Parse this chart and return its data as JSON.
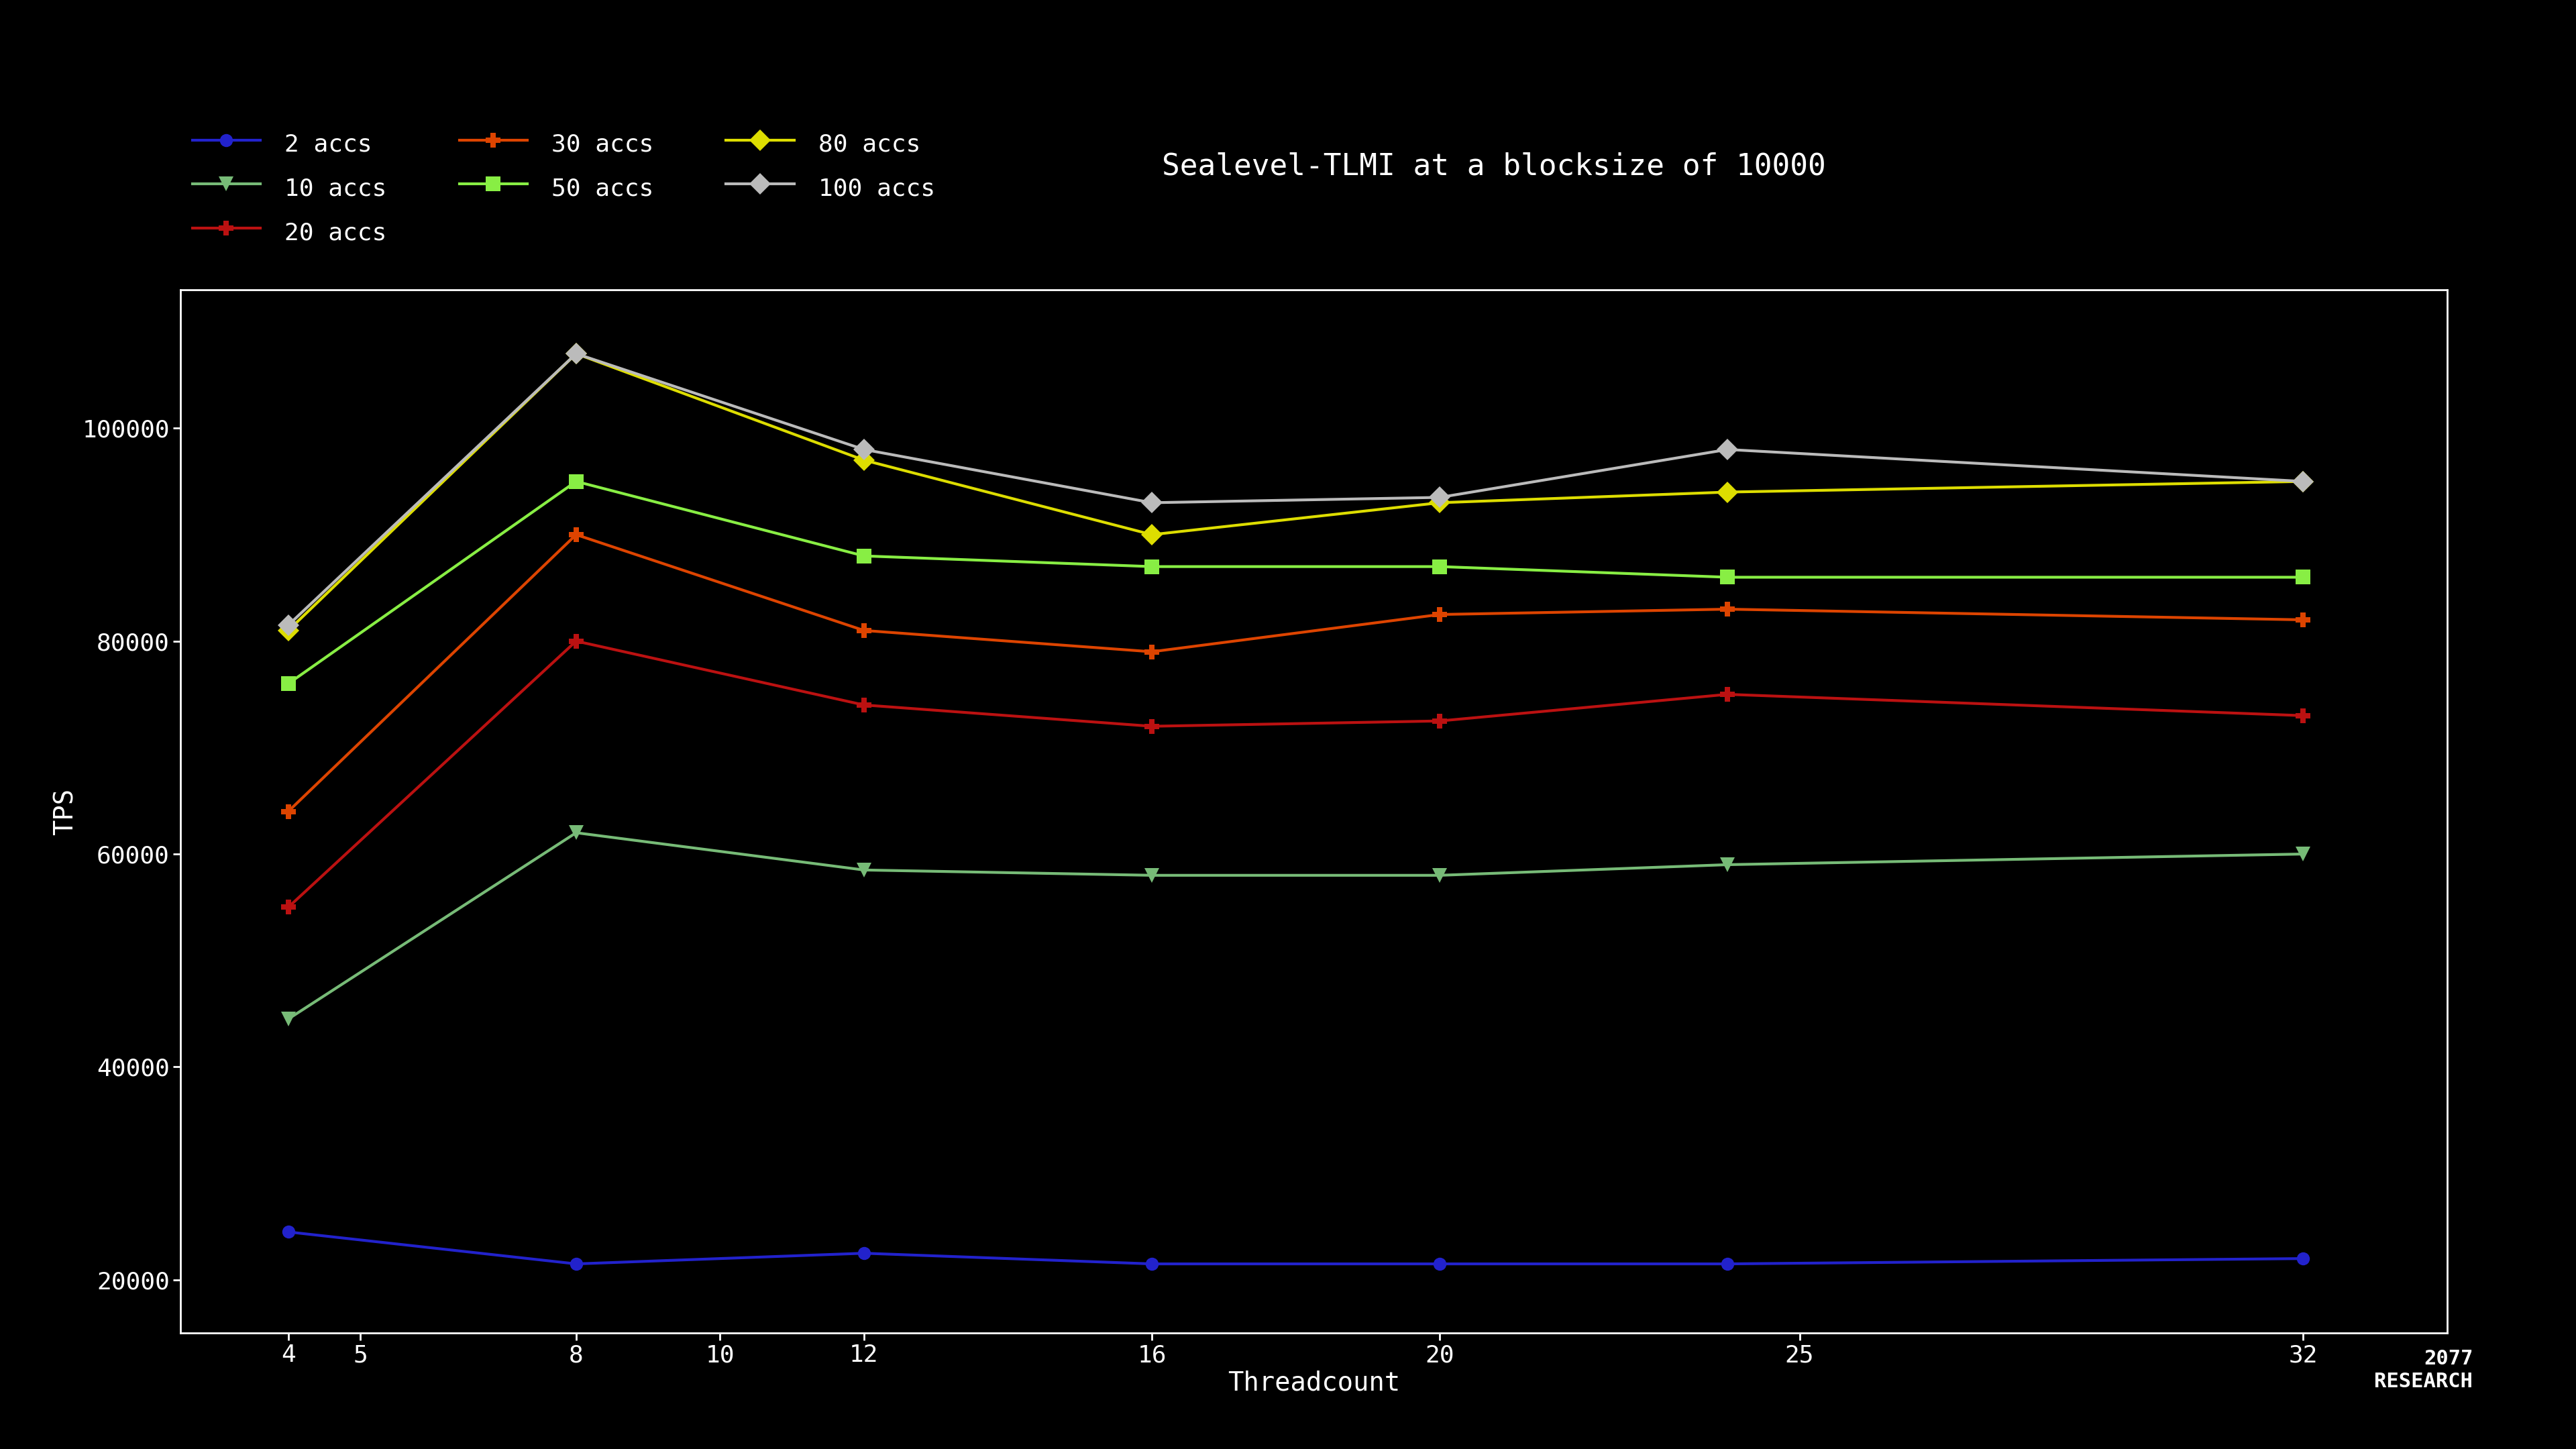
{
  "title": "Sealevel-TLMI at a blocksize of 10000",
  "xlabel": "Threadcount",
  "ylabel": "TPS",
  "background_color": "#000000",
  "plot_bg_color": "#000000",
  "text_color": "#ffffff",
  "axis_color": "#ffffff",
  "threadcounts": [
    4,
    8,
    12,
    16,
    20,
    24,
    32
  ],
  "series": [
    {
      "label": "2 accs",
      "color": "#2222cc",
      "marker": "o",
      "markersize": 14,
      "values": [
        24500,
        21500,
        22500,
        21500,
        21500,
        21500,
        22000
      ]
    },
    {
      "label": "10 accs",
      "color": "#77bb77",
      "marker": "v",
      "markersize": 16,
      "values": [
        44500,
        62000,
        58500,
        58000,
        58000,
        59000,
        60000
      ]
    },
    {
      "label": "20 accs",
      "color": "#bb1111",
      "marker": "P",
      "markersize": 16,
      "values": [
        55000,
        80000,
        74000,
        72000,
        72500,
        75000,
        73000
      ]
    },
    {
      "label": "30 accs",
      "color": "#dd4400",
      "marker": "P",
      "markersize": 16,
      "values": [
        64000,
        90000,
        81000,
        79000,
        82500,
        83000,
        82000
      ]
    },
    {
      "label": "50 accs",
      "color": "#88ee44",
      "marker": "s",
      "markersize": 16,
      "values": [
        76000,
        95000,
        88000,
        87000,
        87000,
        86000,
        86000
      ]
    },
    {
      "label": "80 accs",
      "color": "#dddd00",
      "marker": "D",
      "markersize": 16,
      "values": [
        81000,
        107000,
        97000,
        90000,
        93000,
        94000,
        95000
      ]
    },
    {
      "label": "100 accs",
      "color": "#bbbbbb",
      "marker": "D",
      "markersize": 16,
      "values": [
        81500,
        107000,
        98000,
        93000,
        93500,
        98000,
        95000
      ]
    }
  ],
  "ylim": [
    15000,
    113000
  ],
  "yticks": [
    20000,
    40000,
    60000,
    80000,
    100000
  ],
  "xticks": [
    4,
    5,
    8,
    10,
    12,
    16,
    20,
    25,
    32
  ],
  "title_fontsize": 32,
  "axis_label_fontsize": 28,
  "tick_fontsize": 26,
  "legend_fontsize": 26,
  "linewidth": 3.0
}
